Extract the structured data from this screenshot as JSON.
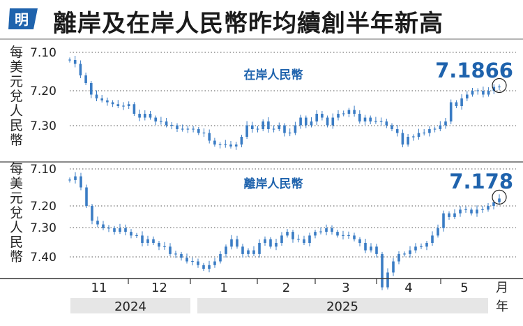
{
  "header": {
    "logo_text": "明",
    "title": "離岸及在岸人民幣昨均續創半年新高"
  },
  "colors": {
    "accent": "#1f63ad",
    "candle": "#3a7cc4",
    "grid": "#333333",
    "band": "#e6e6e6"
  },
  "chart_data": [
    {
      "type": "candlestick",
      "label": "在岸人民幣",
      "ylabel": "每美元兌人民幣",
      "y_ticks": [
        "7.10",
        "7.20",
        "7.30"
      ],
      "ylim": [
        7.1,
        7.36
      ],
      "y_inverted": true,
      "current_value": "7.1866",
      "highlight_last_point": true,
      "approx_daily_close": [
        7.12,
        7.13,
        7.16,
        7.18,
        7.21,
        7.22,
        7.225,
        7.23,
        7.235,
        7.24,
        7.24,
        7.235,
        7.26,
        7.27,
        7.26,
        7.27,
        7.28,
        7.28,
        7.29,
        7.29,
        7.3,
        7.3,
        7.3,
        7.3,
        7.31,
        7.31,
        7.33,
        7.34,
        7.34,
        7.34,
        7.345,
        7.34,
        7.32,
        7.29,
        7.3,
        7.3,
        7.28,
        7.3,
        7.3,
        7.29,
        7.31,
        7.31,
        7.29,
        7.27,
        7.29,
        7.28,
        7.26,
        7.27,
        7.29,
        7.27,
        7.26,
        7.26,
        7.25,
        7.26,
        7.28,
        7.27,
        7.28,
        7.28,
        7.28,
        7.29,
        7.3,
        7.31,
        7.34,
        7.32,
        7.32,
        7.31,
        7.31,
        7.3,
        7.3,
        7.29,
        7.28,
        7.23,
        7.24,
        7.22,
        7.21,
        7.2,
        7.2,
        7.21,
        7.2,
        7.19,
        7.19
      ]
    },
    {
      "type": "candlestick",
      "label": "離岸人民幣",
      "ylabel": "每美元兌人民幣",
      "y_ticks": [
        "7.10",
        "7.20",
        "7.30",
        "7.40"
      ],
      "ylim": [
        7.1,
        7.45
      ],
      "y_inverted": true,
      "current_value": "7.178",
      "highlight_last_point": true,
      "approx_daily_close": [
        7.13,
        7.12,
        7.15,
        7.2,
        7.24,
        7.25,
        7.26,
        7.26,
        7.27,
        7.26,
        7.27,
        7.28,
        7.28,
        7.3,
        7.29,
        7.3,
        7.31,
        7.31,
        7.33,
        7.33,
        7.34,
        7.35,
        7.35,
        7.36,
        7.37,
        7.36,
        7.35,
        7.33,
        7.31,
        7.29,
        7.31,
        7.33,
        7.32,
        7.33,
        7.3,
        7.29,
        7.31,
        7.3,
        7.28,
        7.27,
        7.29,
        7.29,
        7.3,
        7.28,
        7.27,
        7.27,
        7.26,
        7.27,
        7.28,
        7.28,
        7.28,
        7.29,
        7.3,
        7.32,
        7.31,
        7.33,
        7.42,
        7.38,
        7.35,
        7.33,
        7.33,
        7.32,
        7.31,
        7.31,
        7.3,
        7.28,
        7.26,
        7.22,
        7.23,
        7.22,
        7.21,
        7.21,
        7.22,
        7.21,
        7.21,
        7.2,
        7.19,
        7.18
      ]
    }
  ],
  "x_axis": {
    "months": [
      "11",
      "12",
      "1",
      "2",
      "3",
      "4",
      "5"
    ],
    "month_unit": "月",
    "years": [
      "2024",
      "2025"
    ],
    "year_unit": "年"
  }
}
